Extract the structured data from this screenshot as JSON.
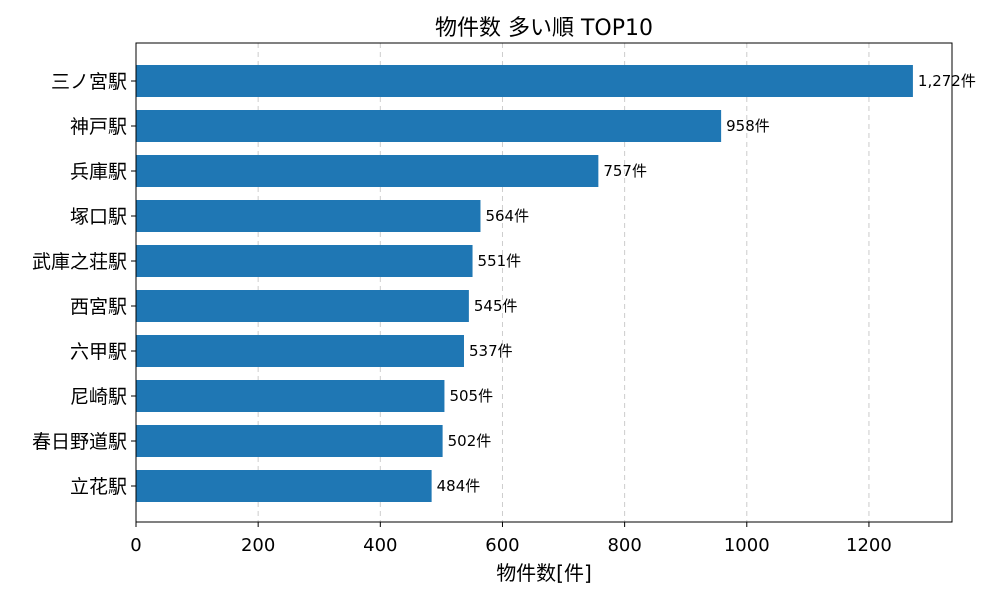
{
  "chart_data": {
    "type": "bar",
    "orientation": "horizontal",
    "title": "物件数 多い順 TOP10",
    "xlabel": "物件数[件]",
    "ylabel": "",
    "categories": [
      "三ノ宮駅",
      "神戸駅",
      "兵庫駅",
      "塚口駅",
      "武庫之荘駅",
      "西宮駅",
      "六甲駅",
      "尼崎駅",
      "春日野道駅",
      "立花駅"
    ],
    "values": [
      1272,
      958,
      757,
      564,
      551,
      545,
      537,
      505,
      502,
      484
    ],
    "value_labels": [
      "1,272件",
      "958件",
      "757件",
      "564件",
      "551件",
      "545件",
      "537件",
      "505件",
      "502件",
      "484件"
    ],
    "x_ticks": [
      0,
      200,
      400,
      600,
      800,
      1000,
      1200
    ],
    "xlim": [
      0,
      1336
    ],
    "grid": "x-dashed",
    "bar_color": "#1f77b4"
  }
}
